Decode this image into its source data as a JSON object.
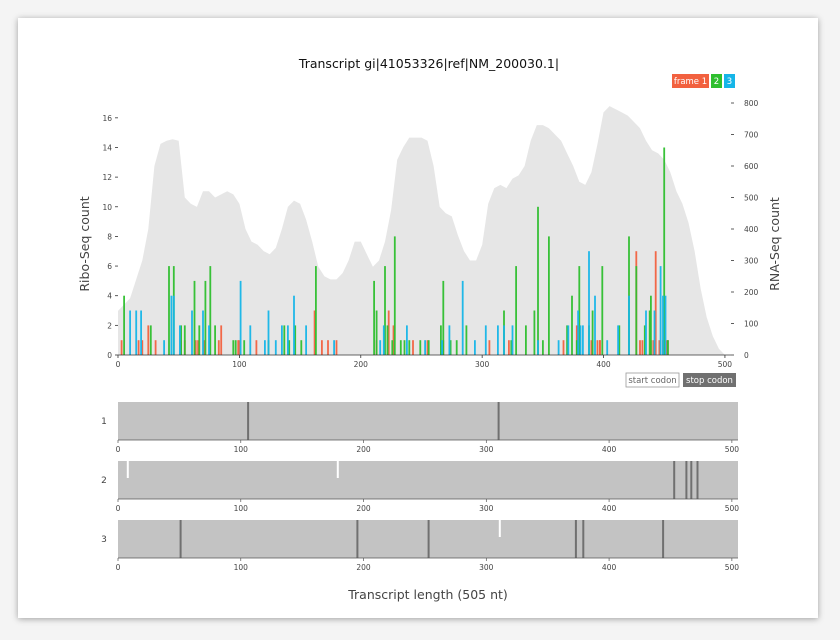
{
  "chart_data": {
    "type": "bar",
    "title": "Transcript gi|41053326|ref|NM_200030.1|",
    "xlabel": "Transcript length (505 nt)",
    "ylabel_left": "Ribo-Seq count",
    "ylabel_right": "RNA-Seq count",
    "xlim": [
      0,
      505
    ],
    "xticks": [
      0,
      100,
      200,
      300,
      400,
      500
    ],
    "ylim_left": [
      0,
      17
    ],
    "yticks_left": [
      0,
      2,
      4,
      6,
      8,
      10,
      12,
      14,
      16
    ],
    "ylim_right": [
      0,
      800
    ],
    "yticks_right": [
      0,
      100,
      200,
      300,
      400,
      500,
      600,
      700,
      800
    ],
    "frame_legend": [
      {
        "label": "frame 1",
        "color": "#f2613f"
      },
      {
        "label": "2",
        "color": "#2ebf2e"
      },
      {
        "label": "3",
        "color": "#15b5e8"
      }
    ],
    "codon_legend": [
      {
        "label": "start codon",
        "color": "#ffffff"
      },
      {
        "label": "stop codon",
        "color": "#707070"
      }
    ],
    "rna_seq": {
      "name": "RNA-Seq count",
      "color": "#e6e6e6",
      "x": [
        0,
        10,
        20,
        25,
        30,
        35,
        40,
        45,
        50,
        55,
        60,
        65,
        70,
        75,
        80,
        85,
        90,
        95,
        100,
        105,
        110,
        115,
        120,
        125,
        130,
        135,
        140,
        145,
        150,
        155,
        160,
        165,
        170,
        175,
        180,
        185,
        190,
        195,
        200,
        205,
        210,
        215,
        220,
        225,
        230,
        235,
        240,
        245,
        250,
        255,
        260,
        265,
        270,
        275,
        280,
        285,
        290,
        295,
        300,
        305,
        310,
        315,
        320,
        325,
        330,
        335,
        340,
        345,
        350,
        355,
        360,
        365,
        370,
        375,
        380,
        385,
        390,
        395,
        400,
        405,
        410,
        415,
        420,
        425,
        430,
        435,
        440,
        445,
        450,
        455,
        460,
        465,
        470,
        475,
        480,
        485,
        490,
        495,
        500,
        505
      ],
      "values": [
        140,
        180,
        300,
        400,
        600,
        670,
        680,
        685,
        680,
        500,
        480,
        470,
        520,
        520,
        500,
        510,
        520,
        510,
        480,
        400,
        360,
        350,
        330,
        320,
        340,
        400,
        470,
        490,
        480,
        430,
        360,
        280,
        250,
        240,
        240,
        260,
        300,
        360,
        360,
        320,
        280,
        300,
        360,
        460,
        620,
        660,
        690,
        690,
        690,
        680,
        600,
        470,
        450,
        440,
        380,
        330,
        300,
        300,
        350,
        480,
        530,
        540,
        530,
        560,
        570,
        600,
        680,
        730,
        730,
        720,
        700,
        680,
        640,
        600,
        550,
        540,
        580,
        670,
        770,
        790,
        780,
        770,
        760,
        740,
        720,
        680,
        650,
        640,
        620,
        580,
        520,
        480,
        420,
        330,
        210,
        120,
        60,
        20,
        0,
        0
      ]
    },
    "series": [
      {
        "name": "frame 1",
        "color": "#f2613f",
        "x": [
          3,
          17,
          20,
          25,
          31,
          52,
          55,
          64,
          66,
          71,
          83,
          85,
          99,
          100,
          114,
          162,
          168,
          173,
          180,
          213,
          223,
          227,
          243,
          255,
          268,
          306,
          322,
          367,
          378,
          380,
          390,
          395,
          397,
          397,
          427,
          430,
          432,
          439,
          441,
          443,
          446,
          449,
          452,
          453
        ],
        "values": [
          1,
          1,
          1,
          2,
          1,
          1,
          1,
          1,
          1,
          1,
          1,
          2,
          1,
          1,
          1,
          3,
          1,
          1,
          1,
          1,
          3,
          2,
          1,
          1,
          1,
          1,
          1,
          1,
          2,
          2,
          1,
          1,
          1,
          1,
          7,
          1,
          1,
          1,
          1,
          7,
          1,
          1,
          1,
          1
        ]
      },
      {
        "name": "2",
        "color": "#2ebf2e",
        "x": [
          5,
          27,
          42,
          46,
          52,
          55,
          63,
          67,
          72,
          76,
          80,
          95,
          97,
          104,
          124,
          137,
          141,
          146,
          151,
          163,
          211,
          213,
          220,
          222,
          226,
          228,
          233,
          236,
          240,
          249,
          256,
          266,
          268,
          274,
          279,
          287,
          318,
          324,
          328,
          336,
          343,
          346,
          350,
          355,
          370,
          374,
          378,
          380,
          388,
          391,
          399,
          413,
          421,
          427,
          434,
          438,
          439,
          450,
          453
        ],
        "values": [
          4,
          2,
          6,
          6,
          2,
          2,
          5,
          2,
          5,
          6,
          2,
          1,
          1,
          1,
          1,
          2,
          1,
          2,
          1,
          6,
          5,
          3,
          6,
          2,
          1,
          8,
          1,
          1,
          1,
          1,
          1,
          2,
          5,
          1,
          1,
          2,
          3,
          1,
          6,
          2,
          3,
          10,
          1,
          8,
          2,
          4,
          1,
          6,
          2,
          3,
          6,
          2,
          8,
          6,
          2,
          3,
          4,
          14,
          1
        ]
      },
      {
        "name": "3",
        "color": "#15b5e8",
        "x": [
          10,
          15,
          19,
          38,
          44,
          46,
          51,
          61,
          70,
          75,
          101,
          109,
          121,
          124,
          130,
          135,
          140,
          145,
          155,
          178,
          216,
          219,
          238,
          253,
          267,
          273,
          284,
          294,
          303,
          313,
          318,
          325,
          346,
          363,
          371,
          379,
          381,
          383,
          388,
          393,
          403,
          412,
          421,
          435,
          442,
          447,
          449,
          451
        ],
        "values": [
          3,
          3,
          3,
          1,
          4,
          4,
          2,
          3,
          3,
          2,
          5,
          2,
          1,
          3,
          1,
          2,
          2,
          4,
          2,
          1,
          1,
          2,
          2,
          1,
          1,
          2,
          5,
          1,
          2,
          2,
          2,
          2,
          1,
          1,
          2,
          3,
          2,
          2,
          7,
          4,
          1,
          2,
          4,
          3,
          3,
          6,
          4,
          4
        ]
      }
    ],
    "orf_tracks": [
      {
        "label": "1",
        "color": "#c3c3c3",
        "start_codons": [],
        "stop_codons": [
          106,
          310
        ]
      },
      {
        "label": "2",
        "color": "#c3c3c3",
        "start_codons": [
          8,
          179
        ],
        "stop_codons": [
          453,
          463,
          467,
          472
        ]
      },
      {
        "label": "3",
        "color": "#c3c3c3",
        "start_codons": [
          311
        ],
        "stop_codons": [
          51,
          195,
          253,
          373,
          379,
          444
        ]
      }
    ]
  }
}
